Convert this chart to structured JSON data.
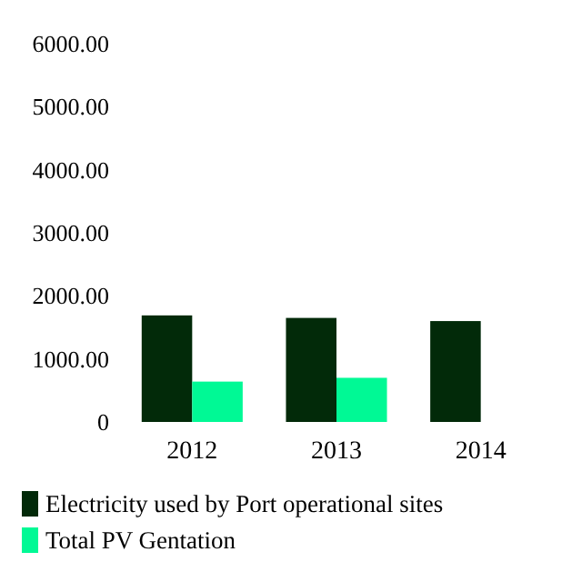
{
  "chart_data": {
    "type": "bar",
    "categories": [
      "2012",
      "2013",
      "2014"
    ],
    "series": [
      {
        "name": "Electricity used by Port operational sites",
        "color": "#022a09",
        "values": [
          1690,
          1650,
          1600
        ]
      },
      {
        "name": "Total PV Gentation",
        "color": "#00f995",
        "values": [
          640,
          700,
          null
        ]
      }
    ],
    "ylim": [
      0,
      6000
    ],
    "yticks": [
      {
        "value": 0,
        "label": "0"
      },
      {
        "value": 1000,
        "label": "1000.00"
      },
      {
        "value": 2000,
        "label": "2000.00"
      },
      {
        "value": 3000,
        "label": "3000.00"
      },
      {
        "value": 4000,
        "label": "4000.00"
      },
      {
        "value": 5000,
        "label": "5000.00"
      },
      {
        "value": 6000,
        "label": "6000.00"
      }
    ],
    "grid": false,
    "legend": "bottom"
  }
}
